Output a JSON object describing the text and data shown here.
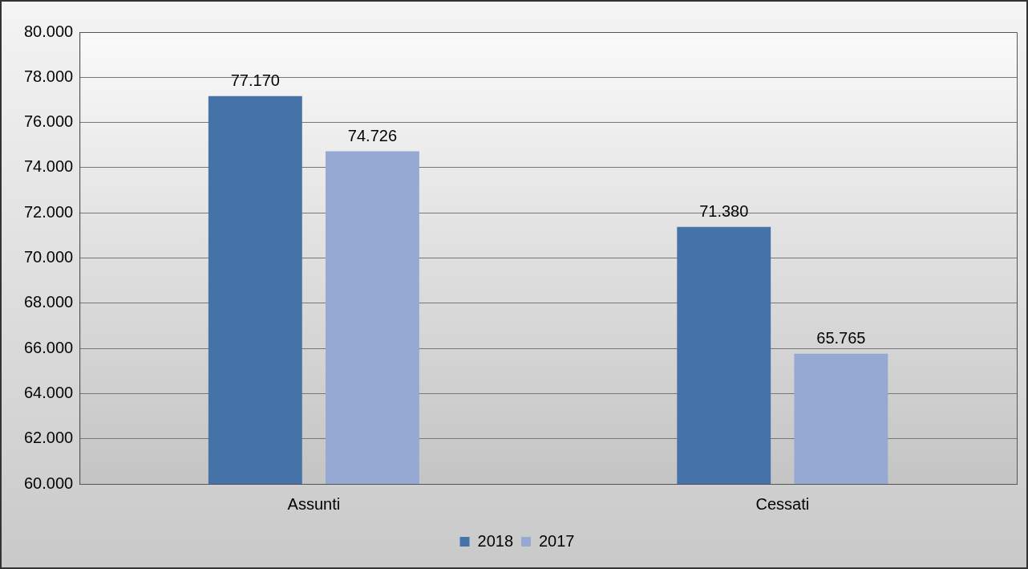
{
  "chart_data": {
    "type": "bar",
    "categories": [
      "Assunti",
      "Cessati"
    ],
    "series": [
      {
        "name": "2018",
        "color": "#4572a7",
        "values": [
          77170,
          71380
        ],
        "value_labels": [
          "77.170",
          "71.380"
        ]
      },
      {
        "name": "2017",
        "color": "#95a9d2",
        "values": [
          74726,
          65765
        ],
        "value_labels": [
          "74.726",
          "65.765"
        ]
      }
    ],
    "ylim": [
      60000,
      80000
    ],
    "yticks": [
      {
        "value": 60000,
        "label": "60.000"
      },
      {
        "value": 62000,
        "label": "62.000"
      },
      {
        "value": 64000,
        "label": "64.000"
      },
      {
        "value": 66000,
        "label": "66.000"
      },
      {
        "value": 68000,
        "label": "68.000"
      },
      {
        "value": 70000,
        "label": "70.000"
      },
      {
        "value": 72000,
        "label": "72.000"
      },
      {
        "value": 74000,
        "label": "74.000"
      },
      {
        "value": 76000,
        "label": "76.000"
      },
      {
        "value": 78000,
        "label": "78.000"
      },
      {
        "value": 80000,
        "label": "80.000"
      }
    ],
    "grid": "y",
    "legend": "bottom"
  }
}
